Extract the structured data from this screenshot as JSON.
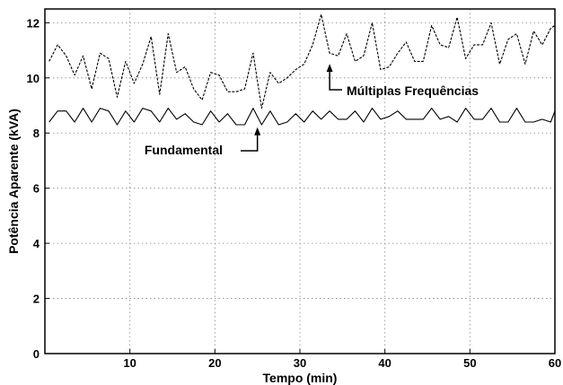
{
  "chart_data": {
    "type": "line",
    "xlabel": "Tempo (min)",
    "ylabel": "Potência Aparente (kVA)",
    "xlim": [
      0,
      60
    ],
    "ylim": [
      0,
      12.5
    ],
    "xticks": [
      10,
      20,
      30,
      40,
      50,
      60
    ],
    "yticks": [
      0,
      2,
      4,
      6,
      8,
      10,
      12
    ],
    "grid": true,
    "series": [
      {
        "name": "Múltiplas Frequências",
        "line_style": "dashed",
        "x": [
          0.5,
          1.5,
          2.5,
          3.5,
          4.5,
          5.5,
          6.5,
          7.5,
          8.5,
          9.5,
          10.5,
          11.5,
          12.5,
          13.5,
          14.5,
          15.5,
          16.5,
          17.5,
          18.5,
          19.5,
          20.5,
          21.5,
          22.5,
          23.5,
          24.5,
          25.5,
          26.5,
          27.5,
          28.5,
          29.5,
          30.5,
          31.5,
          32.5,
          33.5,
          34.5,
          35.5,
          36.5,
          37.5,
          38.5,
          39.5,
          40.5,
          41.5,
          42.5,
          43.5,
          44.5,
          45.5,
          46.5,
          47.5,
          48.5,
          49.5,
          50.5,
          51.5,
          52.5,
          53.5,
          54.5,
          55.5,
          56.5,
          57.5,
          58.5,
          59.5,
          60
        ],
        "y": [
          10.6,
          11.2,
          10.8,
          10.1,
          10.8,
          9.6,
          10.9,
          10.7,
          9.3,
          10.6,
          9.8,
          10.5,
          11.5,
          9.4,
          11.6,
          10.2,
          10.4,
          9.6,
          9.2,
          10.2,
          10.1,
          9.5,
          9.5,
          9.6,
          10.9,
          8.9,
          10.2,
          9.8,
          10.0,
          10.3,
          10.5,
          11.2,
          12.3,
          10.9,
          10.8,
          11.6,
          10.6,
          10.8,
          12.0,
          10.3,
          10.4,
          10.9,
          11.3,
          10.6,
          10.6,
          11.9,
          11.2,
          11.1,
          12.2,
          10.7,
          11.2,
          11.2,
          12.0,
          10.5,
          11.4,
          11.6,
          10.5,
          11.7,
          11.2,
          11.8,
          11.9
        ]
      },
      {
        "name": "Fundamental",
        "line_style": "solid",
        "x": [
          0.5,
          1.5,
          2.5,
          3.5,
          4.5,
          5.5,
          6.5,
          7.5,
          8.5,
          9.5,
          10.5,
          11.5,
          12.5,
          13.5,
          14.5,
          15.5,
          16.5,
          17.5,
          18.5,
          19.5,
          20.5,
          21.5,
          22.5,
          23.5,
          24.5,
          25.5,
          26.5,
          27.5,
          28.5,
          29.5,
          30.5,
          31.5,
          32.5,
          33.5,
          34.5,
          35.5,
          36.5,
          37.5,
          38.5,
          39.5,
          40.5,
          41.5,
          42.5,
          43.5,
          44.5,
          45.5,
          46.5,
          47.5,
          48.5,
          49.5,
          50.5,
          51.5,
          52.5,
          53.5,
          54.5,
          55.5,
          56.5,
          57.5,
          58.5,
          59.5,
          60
        ],
        "y": [
          8.4,
          8.8,
          8.8,
          8.4,
          8.9,
          8.4,
          8.9,
          8.8,
          8.3,
          8.8,
          8.4,
          8.9,
          8.8,
          8.4,
          8.9,
          8.5,
          8.7,
          8.4,
          8.3,
          8.8,
          8.4,
          8.7,
          8.3,
          8.3,
          8.9,
          8.3,
          8.8,
          8.3,
          8.4,
          8.7,
          8.4,
          8.8,
          8.5,
          8.8,
          8.5,
          8.5,
          8.8,
          8.4,
          8.9,
          8.5,
          8.6,
          8.8,
          8.5,
          8.5,
          8.5,
          8.9,
          8.5,
          8.6,
          8.4,
          8.9,
          8.5,
          8.5,
          8.9,
          8.4,
          8.4,
          8.9,
          8.4,
          8.4,
          8.5,
          8.4,
          8.8
        ]
      }
    ],
    "annotations": [
      {
        "text": "Múltiplas Frequências",
        "points_to": {
          "x": 33.5,
          "y": 10.9
        }
      },
      {
        "text": "Fundamental",
        "points_to": {
          "x": 25,
          "y": 8.6
        }
      }
    ]
  }
}
